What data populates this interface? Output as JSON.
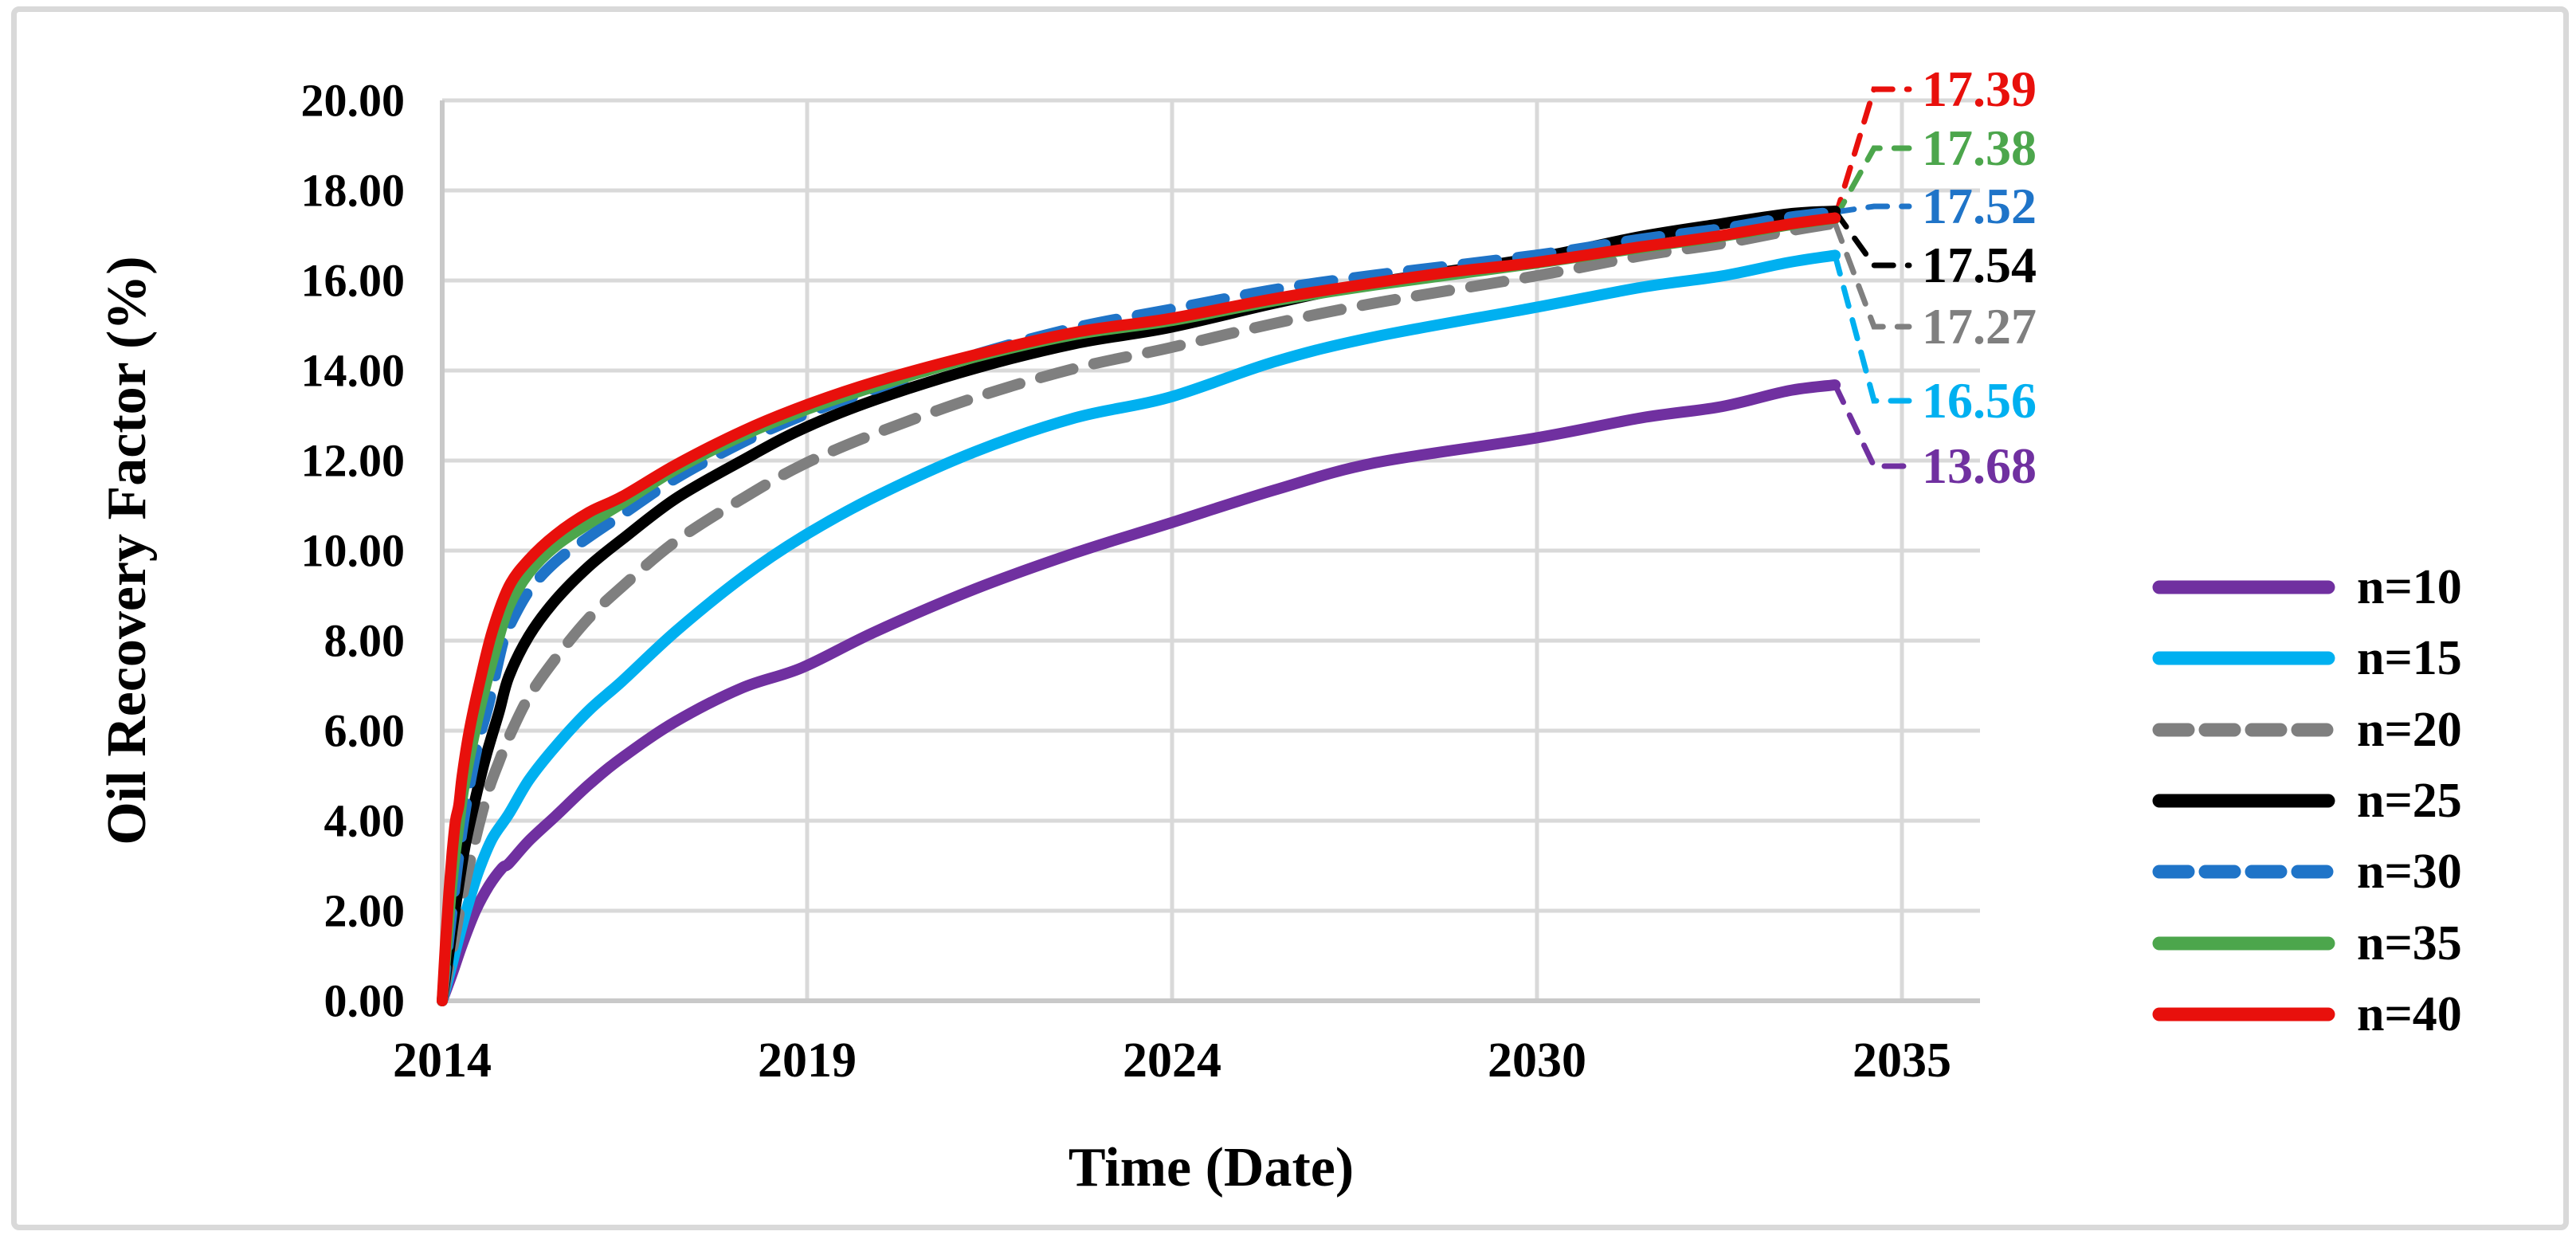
{
  "chart_data": {
    "type": "line",
    "title": "",
    "xlabel": "Time (Date)",
    "ylabel": "Oil Recovery Factor (%)",
    "grid": true,
    "legend_position": "right",
    "x_ticks": [
      {
        "label": "2014",
        "t": 0.0
      },
      {
        "label": "2019",
        "t": 5.476
      },
      {
        "label": "2024",
        "t": 10.952
      },
      {
        "label": "2030",
        "t": 16.427
      },
      {
        "label": "2035",
        "t": 21.903
      }
    ],
    "x_domain": [
      0.0,
      23.1
    ],
    "ylim": [
      0,
      20
    ],
    "y_tick_labels": [
      "0.00",
      "2.00",
      "4.00",
      "6.00",
      "8.00",
      "10.00",
      "12.00",
      "14.00",
      "16.00",
      "18.00",
      "20.00"
    ],
    "colors": {
      "grid": "#d9d9d9",
      "axis": "#c9c9c9",
      "frame_border": "#d9d9d9"
    },
    "series": [
      {
        "name": "n=10",
        "color": "#7030A0",
        "dash": false,
        "end_value": "13.68",
        "points": [
          [
            0,
            0
          ],
          [
            0.15,
            0.6
          ],
          [
            0.3,
            1.25
          ],
          [
            0.5,
            2.0
          ],
          [
            0.7,
            2.55
          ],
          [
            0.9,
            2.95
          ],
          [
            1.0,
            3.05
          ],
          [
            1.3,
            3.55
          ],
          [
            1.7,
            4.1
          ],
          [
            2.2,
            4.8
          ],
          [
            2.7,
            5.4
          ],
          [
            3.5,
            6.2
          ],
          [
            4.5,
            6.95
          ],
          [
            5.4,
            7.4
          ],
          [
            6.5,
            8.2
          ],
          [
            8.0,
            9.15
          ],
          [
            9.5,
            9.95
          ],
          [
            10.9,
            10.6
          ],
          [
            12.5,
            11.35
          ],
          [
            14.0,
            11.95
          ],
          [
            16.4,
            12.5
          ],
          [
            18.0,
            12.95
          ],
          [
            19.2,
            13.2
          ],
          [
            20.2,
            13.55
          ],
          [
            20.9,
            13.68
          ]
        ]
      },
      {
        "name": "n=15",
        "color": "#00B0F0",
        "dash": false,
        "end_value": "16.56",
        "points": [
          [
            0,
            0
          ],
          [
            0.12,
            0.65
          ],
          [
            0.25,
            1.4
          ],
          [
            0.4,
            2.2
          ],
          [
            0.55,
            2.9
          ],
          [
            0.75,
            3.6
          ],
          [
            1.0,
            4.15
          ],
          [
            1.3,
            4.9
          ],
          [
            1.7,
            5.65
          ],
          [
            2.2,
            6.45
          ],
          [
            2.7,
            7.1
          ],
          [
            3.5,
            8.2
          ],
          [
            4.5,
            9.4
          ],
          [
            5.4,
            10.3
          ],
          [
            6.5,
            11.2
          ],
          [
            8.0,
            12.2
          ],
          [
            9.5,
            12.95
          ],
          [
            10.9,
            13.4
          ],
          [
            12.5,
            14.2
          ],
          [
            14.0,
            14.75
          ],
          [
            16.4,
            15.4
          ],
          [
            18.0,
            15.85
          ],
          [
            19.2,
            16.1
          ],
          [
            20.2,
            16.4
          ],
          [
            20.9,
            16.56
          ]
        ]
      },
      {
        "name": "n=20",
        "color": "#7F7F7F",
        "dash": true,
        "end_value": "17.27",
        "points": [
          [
            0,
            0
          ],
          [
            0.1,
            0.75
          ],
          [
            0.2,
            1.5
          ],
          [
            0.3,
            2.3
          ],
          [
            0.42,
            3.1
          ],
          [
            0.55,
            3.9
          ],
          [
            0.7,
            4.7
          ],
          [
            0.85,
            5.3
          ],
          [
            1.0,
            5.85
          ],
          [
            1.3,
            6.75
          ],
          [
            1.7,
            7.6
          ],
          [
            2.2,
            8.5
          ],
          [
            2.7,
            9.2
          ],
          [
            3.5,
            10.2
          ],
          [
            4.5,
            11.15
          ],
          [
            5.4,
            11.9
          ],
          [
            6.5,
            12.6
          ],
          [
            8.0,
            13.4
          ],
          [
            9.5,
            14.05
          ],
          [
            10.9,
            14.5
          ],
          [
            12.5,
            15.05
          ],
          [
            14.0,
            15.5
          ],
          [
            16.4,
            16.1
          ],
          [
            18.0,
            16.55
          ],
          [
            19.2,
            16.82
          ],
          [
            20.2,
            17.1
          ],
          [
            20.9,
            17.27
          ]
        ]
      },
      {
        "name": "n=25",
        "color": "#000000",
        "dash": false,
        "end_value": "17.54",
        "points": [
          [
            0,
            0
          ],
          [
            0.08,
            0.85
          ],
          [
            0.16,
            1.7
          ],
          [
            0.25,
            2.6
          ],
          [
            0.35,
            3.5
          ],
          [
            0.5,
            4.5
          ],
          [
            0.65,
            5.4
          ],
          [
            0.85,
            6.4
          ],
          [
            1.0,
            7.2
          ],
          [
            1.3,
            8.1
          ],
          [
            1.7,
            8.9
          ],
          [
            2.2,
            9.65
          ],
          [
            2.7,
            10.25
          ],
          [
            3.5,
            11.15
          ],
          [
            4.5,
            12.0
          ],
          [
            5.4,
            12.7
          ],
          [
            6.5,
            13.35
          ],
          [
            8.0,
            14.05
          ],
          [
            9.5,
            14.6
          ],
          [
            10.9,
            14.95
          ],
          [
            12.5,
            15.5
          ],
          [
            14.0,
            15.95
          ],
          [
            16.4,
            16.5
          ],
          [
            18.0,
            16.98
          ],
          [
            19.2,
            17.26
          ],
          [
            20.2,
            17.48
          ],
          [
            20.9,
            17.54
          ]
        ]
      },
      {
        "name": "n=30",
        "color": "#1F74C8",
        "dash": true,
        "end_value": "17.52",
        "points": [
          [
            0,
            0
          ],
          [
            0.07,
            1.0
          ],
          [
            0.14,
            1.9
          ],
          [
            0.22,
            2.9
          ],
          [
            0.3,
            3.8
          ],
          [
            0.4,
            4.7
          ],
          [
            0.55,
            5.8
          ],
          [
            0.7,
            6.6
          ],
          [
            0.9,
            7.9
          ],
          [
            1.0,
            8.3
          ],
          [
            1.3,
            9.1
          ],
          [
            1.7,
            9.75
          ],
          [
            2.2,
            10.3
          ],
          [
            2.7,
            10.8
          ],
          [
            3.5,
            11.6
          ],
          [
            4.5,
            12.4
          ],
          [
            5.4,
            13.0
          ],
          [
            6.5,
            13.6
          ],
          [
            8.0,
            14.35
          ],
          [
            9.5,
            14.95
          ],
          [
            10.9,
            15.35
          ],
          [
            12.5,
            15.8
          ],
          [
            14.0,
            16.12
          ],
          [
            16.4,
            16.56
          ],
          [
            18.0,
            16.92
          ],
          [
            19.2,
            17.15
          ],
          [
            20.2,
            17.4
          ],
          [
            20.9,
            17.52
          ]
        ]
      },
      {
        "name": "n=35",
        "color": "#4CA64C",
        "dash": false,
        "end_value": "17.38",
        "points": [
          [
            0,
            0
          ],
          [
            0.06,
            1.15
          ],
          [
            0.12,
            2.2
          ],
          [
            0.18,
            3.1
          ],
          [
            0.25,
            3.9
          ],
          [
            0.32,
            4.7
          ],
          [
            0.45,
            5.7
          ],
          [
            0.6,
            6.7
          ],
          [
            0.8,
            7.8
          ],
          [
            1.0,
            8.75
          ],
          [
            1.3,
            9.5
          ],
          [
            1.7,
            10.1
          ],
          [
            2.2,
            10.6
          ],
          [
            2.7,
            11.05
          ],
          [
            3.5,
            11.8
          ],
          [
            4.5,
            12.55
          ],
          [
            5.4,
            13.1
          ],
          [
            6.5,
            13.65
          ],
          [
            8.0,
            14.3
          ],
          [
            9.5,
            14.8
          ],
          [
            10.9,
            15.1
          ],
          [
            12.5,
            15.55
          ],
          [
            14.0,
            15.9
          ],
          [
            16.4,
            16.38
          ],
          [
            18.0,
            16.73
          ],
          [
            19.2,
            16.98
          ],
          [
            20.2,
            17.23
          ],
          [
            20.9,
            17.38
          ]
        ]
      },
      {
        "name": "n=40",
        "color": "#E8100C",
        "dash": false,
        "end_value": "17.39",
        "points": [
          [
            0,
            0
          ],
          [
            0.05,
            1.3
          ],
          [
            0.1,
            2.4
          ],
          [
            0.15,
            3.3
          ],
          [
            0.2,
            4.0
          ],
          [
            0.25,
            4.35
          ],
          [
            0.3,
            5.0
          ],
          [
            0.4,
            5.95
          ],
          [
            0.55,
            7.0
          ],
          [
            0.75,
            8.2
          ],
          [
            1.0,
            9.2
          ],
          [
            1.3,
            9.8
          ],
          [
            1.7,
            10.35
          ],
          [
            2.2,
            10.85
          ],
          [
            2.7,
            11.2
          ],
          [
            3.5,
            11.9
          ],
          [
            4.5,
            12.65
          ],
          [
            5.4,
            13.2
          ],
          [
            6.5,
            13.75
          ],
          [
            8.0,
            14.35
          ],
          [
            9.5,
            14.85
          ],
          [
            10.9,
            15.15
          ],
          [
            12.5,
            15.6
          ],
          [
            14.0,
            15.95
          ],
          [
            15.2,
            16.2
          ],
          [
            16.4,
            16.4
          ],
          [
            18.0,
            16.75
          ],
          [
            19.2,
            17.0
          ],
          [
            20.2,
            17.25
          ],
          [
            20.9,
            17.39
          ]
        ]
      }
    ],
    "callouts_top_to_bottom": [
      {
        "series": "n=40",
        "text": "17.39"
      },
      {
        "series": "n=35",
        "text": "17.38"
      },
      {
        "series": "n=30",
        "text": "17.52"
      },
      {
        "series": "n=25",
        "text": "17.54"
      },
      {
        "series": "n=20",
        "text": "17.27"
      },
      {
        "series": "n=15",
        "text": "16.56"
      },
      {
        "series": "n=10",
        "text": "13.68"
      }
    ],
    "legend_top_to_bottom": [
      "n=10",
      "n=15",
      "n=20",
      "n=25",
      "n=30",
      "n=35",
      "n=40"
    ]
  }
}
